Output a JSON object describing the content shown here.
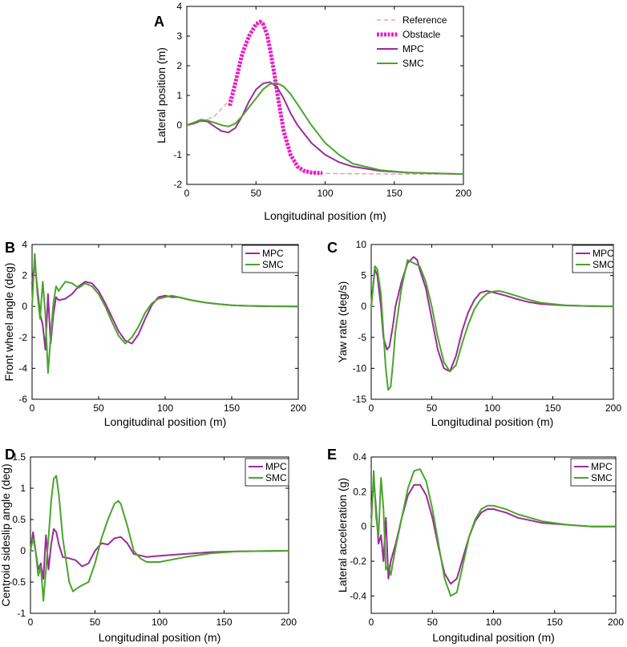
{
  "chart_data": [
    {
      "panel": "A",
      "type": "line",
      "xlabel": "Longitudinal position (m)",
      "ylabel": "Lateral position (m)",
      "xlim": [
        0,
        200
      ],
      "ylim": [
        -2,
        4
      ],
      "xticks": [
        0,
        50,
        100,
        150,
        200
      ],
      "yticks": [
        -2,
        -1,
        0,
        1,
        2,
        3,
        4
      ],
      "legend": "top-right",
      "series": [
        {
          "name": "Reference",
          "color": "#f08c8c",
          "style": "dashed",
          "x": [
            0,
            10,
            20,
            30,
            40,
            45,
            50,
            55,
            60,
            65,
            70,
            75,
            80,
            90,
            100,
            120,
            150,
            200
          ],
          "y": [
            0,
            0.1,
            0.3,
            0.8,
            2.2,
            3.0,
            3.4,
            3.45,
            2.6,
            1.2,
            -0.2,
            -1.0,
            -1.4,
            -1.6,
            -1.63,
            -1.64,
            -1.65,
            -1.65
          ]
        },
        {
          "name": "Obstacle",
          "color": "#e61ec8",
          "style": "thick-dashed",
          "x": [
            31,
            35,
            40,
            45,
            50,
            53,
            55,
            58,
            60,
            63,
            66,
            70,
            75,
            80,
            85,
            90,
            98
          ],
          "y": [
            0.65,
            1.4,
            2.4,
            3.0,
            3.4,
            3.48,
            3.42,
            3.05,
            2.6,
            1.8,
            0.9,
            -0.2,
            -1.0,
            -1.4,
            -1.55,
            -1.6,
            -1.62
          ]
        },
        {
          "name": "MPC",
          "color": "#9b2b9b",
          "style": "solid",
          "x": [
            0,
            5,
            10,
            15,
            20,
            25,
            30,
            35,
            40,
            45,
            50,
            55,
            60,
            65,
            70,
            75,
            80,
            90,
            100,
            110,
            120,
            140,
            160,
            180,
            200
          ],
          "y": [
            0,
            0.05,
            0.15,
            0.12,
            -0.05,
            -0.2,
            -0.25,
            -0.1,
            0.3,
            0.8,
            1.2,
            1.4,
            1.45,
            1.3,
            0.9,
            0.4,
            0,
            -0.6,
            -1.0,
            -1.25,
            -1.4,
            -1.55,
            -1.6,
            -1.63,
            -1.65
          ]
        },
        {
          "name": "SMC",
          "color": "#4aa52a",
          "style": "solid",
          "x": [
            0,
            5,
            10,
            15,
            20,
            25,
            30,
            35,
            40,
            45,
            50,
            55,
            60,
            65,
            70,
            75,
            80,
            90,
            100,
            110,
            120,
            140,
            160,
            180,
            200
          ],
          "y": [
            0,
            0.08,
            0.18,
            0.15,
            0.08,
            0,
            -0.05,
            0.05,
            0.3,
            0.6,
            0.9,
            1.2,
            1.38,
            1.42,
            1.3,
            1.05,
            0.7,
            0,
            -0.6,
            -1.0,
            -1.3,
            -1.52,
            -1.6,
            -1.63,
            -1.65
          ]
        }
      ]
    },
    {
      "panel": "B",
      "type": "line",
      "xlabel": "Longitudinal position (m)",
      "ylabel": "Front wheel angle (deg)",
      "xlim": [
        0,
        200
      ],
      "ylim": [
        -6,
        4
      ],
      "xticks": [
        0,
        50,
        100,
        150,
        200
      ],
      "yticks": [
        -6,
        -4,
        -2,
        0,
        2,
        4
      ],
      "legend": "top-right",
      "series": [
        {
          "name": "MPC",
          "color": "#9b2b9b",
          "x": [
            0,
            2,
            4,
            6,
            8,
            10,
            12,
            14,
            16,
            18,
            20,
            25,
            30,
            35,
            40,
            45,
            50,
            55,
            60,
            65,
            70,
            75,
            80,
            85,
            90,
            95,
            100,
            105,
            110,
            115,
            120,
            130,
            140,
            150,
            160,
            170,
            180,
            200
          ],
          "y": [
            1.5,
            2.8,
            1.2,
            -0.5,
            -1.2,
            -2.8,
            0.8,
            -2.4,
            -0.5,
            0.6,
            0.4,
            0.5,
            0.8,
            1.3,
            1.6,
            1.5,
            1.0,
            0.2,
            -0.7,
            -1.6,
            -2.2,
            -2.4,
            -1.8,
            -0.8,
            0.1,
            0.6,
            0.7,
            0.6,
            0.6,
            0.5,
            0.4,
            0.25,
            0.15,
            0.08,
            0.04,
            0.02,
            0.01,
            0
          ]
        },
        {
          "name": "SMC",
          "color": "#4aa52a",
          "x": [
            0,
            2,
            4,
            6,
            8,
            10,
            12,
            14,
            16,
            18,
            20,
            25,
            30,
            35,
            40,
            45,
            50,
            55,
            60,
            65,
            70,
            75,
            80,
            85,
            90,
            95,
            100,
            105,
            110,
            115,
            120,
            130,
            140,
            150,
            160,
            170,
            180,
            200
          ],
          "y": [
            0,
            3.4,
            0.8,
            -0.8,
            1.6,
            -0.5,
            -4.3,
            -2.0,
            0.2,
            1.3,
            1.0,
            1.6,
            1.5,
            1.2,
            1.5,
            1.3,
            0.8,
            0,
            -1.0,
            -1.9,
            -2.4,
            -2.0,
            -1.3,
            -0.4,
            0.2,
            0.5,
            0.6,
            0.7,
            0.6,
            0.5,
            0.4,
            0.25,
            0.15,
            0.08,
            0.04,
            0.02,
            0.01,
            0
          ]
        }
      ]
    },
    {
      "panel": "C",
      "type": "line",
      "xlabel": "Longitudinal position (m)",
      "ylabel": "Yaw rate (deg/s)",
      "xlim": [
        0,
        200
      ],
      "ylim": [
        -15,
        10
      ],
      "xticks": [
        0,
        50,
        100,
        150,
        200
      ],
      "yticks": [
        -15,
        -10,
        -5,
        0,
        5,
        10
      ],
      "legend": "top-right",
      "series": [
        {
          "name": "MPC",
          "color": "#9b2b9b",
          "x": [
            0,
            3,
            5,
            8,
            10,
            13,
            15,
            18,
            20,
            25,
            30,
            35,
            38,
            40,
            45,
            50,
            55,
            60,
            65,
            70,
            75,
            80,
            85,
            90,
            95,
            100,
            110,
            120,
            130,
            140,
            160,
            180,
            200
          ],
          "y": [
            0,
            6,
            5,
            0,
            -5,
            -7,
            -6.5,
            -3,
            0,
            4,
            7,
            8,
            7.5,
            6,
            3,
            -2,
            -7,
            -10,
            -10.5,
            -8,
            -4,
            -1,
            1,
            2.2,
            2.5,
            2.3,
            1.8,
            1.2,
            0.7,
            0.4,
            0.15,
            0.05,
            0
          ]
        },
        {
          "name": "SMC",
          "color": "#4aa52a",
          "x": [
            0,
            3,
            5,
            8,
            10,
            12,
            14,
            16,
            18,
            20,
            25,
            30,
            35,
            40,
            45,
            50,
            55,
            60,
            65,
            70,
            75,
            80,
            85,
            90,
            95,
            100,
            105,
            110,
            120,
            130,
            140,
            160,
            180,
            200
          ],
          "y": [
            0,
            6.5,
            6,
            2,
            -4,
            -10,
            -13.5,
            -13,
            -9,
            -4,
            3,
            7.5,
            7,
            6.5,
            4,
            0,
            -5,
            -9,
            -10.5,
            -9.5,
            -6,
            -3,
            -0.5,
            1,
            2,
            2.4,
            2.5,
            2.3,
            1.7,
            1.1,
            0.6,
            0.2,
            0.06,
            0
          ]
        }
      ]
    },
    {
      "panel": "D",
      "type": "line",
      "xlabel": "Longitudinal position (m)",
      "ylabel": "Centroid sideslip angle (deg)",
      "xlim": [
        0,
        200
      ],
      "ylim": [
        -1,
        1.5
      ],
      "xticks": [
        0,
        50,
        100,
        150,
        200
      ],
      "yticks": [
        -1,
        -0.5,
        0,
        0.5,
        1,
        1.5
      ],
      "legend": "top-right",
      "series": [
        {
          "name": "MPC",
          "color": "#9b2b9b",
          "x": [
            0,
            2,
            4,
            6,
            8,
            10,
            12,
            14,
            16,
            18,
            20,
            22,
            25,
            30,
            35,
            40,
            45,
            50,
            55,
            60,
            65,
            70,
            75,
            80,
            90,
            100,
            120,
            140,
            160,
            200
          ],
          "y": [
            0,
            0.3,
            0.0,
            -0.3,
            -0.2,
            -0.45,
            0.25,
            -0.3,
            0.1,
            0.35,
            0.3,
            0.1,
            -0.1,
            -0.12,
            -0.15,
            -0.25,
            -0.2,
            0.0,
            0.12,
            0.1,
            0.2,
            0.22,
            0.12,
            -0.05,
            -0.1,
            -0.08,
            -0.05,
            -0.02,
            -0.01,
            0
          ]
        },
        {
          "name": "SMC",
          "color": "#4aa52a",
          "x": [
            0,
            2,
            4,
            6,
            8,
            10,
            12,
            14,
            16,
            18,
            20,
            22,
            25,
            30,
            33,
            36,
            40,
            45,
            50,
            55,
            60,
            65,
            68,
            70,
            75,
            80,
            85,
            90,
            100,
            120,
            140,
            160,
            200
          ],
          "y": [
            0,
            0.2,
            0,
            -0.4,
            -0.25,
            -0.8,
            -0.3,
            0.2,
            0.8,
            1.15,
            1.2,
            0.9,
            0.2,
            -0.5,
            -0.65,
            -0.6,
            -0.55,
            -0.5,
            -0.2,
            0.2,
            0.5,
            0.75,
            0.8,
            0.75,
            0.4,
            0.0,
            -0.12,
            -0.18,
            -0.18,
            -0.1,
            -0.04,
            -0.01,
            0
          ]
        }
      ]
    },
    {
      "panel": "E",
      "type": "line",
      "xlabel": "Longitudinal position (m)",
      "ylabel": "Lateral acceleration (g)",
      "xlim": [
        0,
        200
      ],
      "ylim": [
        -0.5,
        0.4
      ],
      "xticks": [
        0,
        50,
        100,
        150,
        200
      ],
      "yticks": [
        -0.4,
        -0.2,
        0,
        0.2,
        0.4
      ],
      "legend": "top-right",
      "series": [
        {
          "name": "MPC",
          "color": "#9b2b9b",
          "x": [
            0,
            2,
            4,
            6,
            8,
            10,
            12,
            14,
            16,
            18,
            20,
            25,
            30,
            35,
            40,
            45,
            50,
            55,
            60,
            65,
            70,
            75,
            80,
            85,
            90,
            95,
            100,
            105,
            110,
            120,
            140,
            160,
            180,
            200
          ],
          "y": [
            0.05,
            0.28,
            0.1,
            -0.1,
            -0.05,
            -0.2,
            0.05,
            -0.3,
            -0.2,
            -0.15,
            -0.1,
            0.05,
            0.18,
            0.24,
            0.24,
            0.18,
            0.05,
            -0.12,
            -0.27,
            -0.33,
            -0.3,
            -0.18,
            -0.06,
            0.03,
            0.08,
            0.1,
            0.1,
            0.09,
            0.08,
            0.05,
            0.02,
            0.01,
            0,
            0
          ]
        },
        {
          "name": "SMC",
          "color": "#4aa52a",
          "x": [
            0,
            2,
            4,
            6,
            8,
            10,
            12,
            14,
            16,
            18,
            20,
            25,
            30,
            35,
            40,
            45,
            50,
            55,
            60,
            65,
            70,
            75,
            80,
            85,
            90,
            95,
            100,
            105,
            110,
            120,
            140,
            160,
            180,
            200
          ],
          "y": [
            0,
            0.32,
            0.05,
            -0.05,
            0.28,
            0.1,
            -0.25,
            -0.22,
            -0.28,
            -0.2,
            -0.12,
            0.05,
            0.22,
            0.32,
            0.33,
            0.26,
            0.1,
            -0.1,
            -0.3,
            -0.4,
            -0.38,
            -0.22,
            -0.06,
            0.04,
            0.1,
            0.12,
            0.12,
            0.11,
            0.1,
            0.07,
            0.03,
            0.01,
            0,
            0
          ]
        }
      ]
    }
  ]
}
